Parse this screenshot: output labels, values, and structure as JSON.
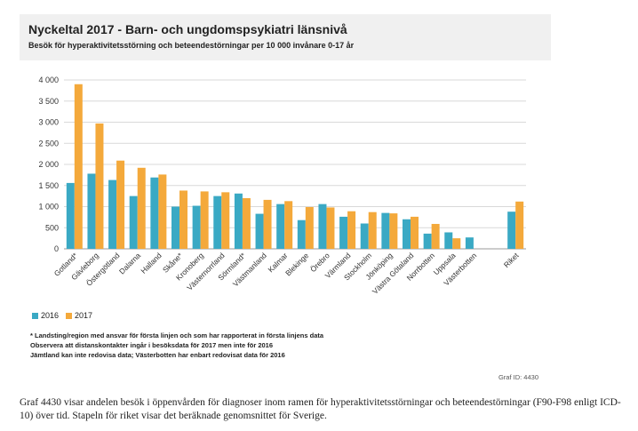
{
  "title": "Nyckeltal 2017 - Barn- och ungdomspsykiatri länsnivå",
  "subtitle": "Besök för hyperaktivitetsstörning och beteendestörningar per 10 000 invånare 0-17 år",
  "legend": [
    {
      "label": "2016",
      "color": "#3aa9c4"
    },
    {
      "label": "2017",
      "color": "#f4a93b"
    }
  ],
  "notes": [
    "* Landsting/region med ansvar för första linjen och som har rapporterat in första linjens data",
    "Observera att distanskontakter ingår i besöksdata för 2017 men inte för 2016",
    "Jämtland kan inte redovisa data; Västerbotten har enbart redovisat data för 2016"
  ],
  "graf_id": "Graf ID: 4430",
  "caption": "Graf 4430 visar andelen besök i öppenvården för diagnoser inom ramen för hyperaktivitetsstörningar och beteendestörningar (F90-F98 enligt ICD-10) över tid. Stapeln för riket visar det beräknade genomsnittet för Sverige.",
  "chart_data": {
    "type": "bar",
    "title": "Nyckeltal 2017 - Barn- och ungdomspsykiatri länsnivå",
    "subtitle": "Besök för hyperaktivitetsstörning och beteendestörningar per 10 000 invånare 0-17 år",
    "ylim": [
      0,
      4000
    ],
    "yticks": [
      "0",
      "500",
      "1 000",
      "1 500",
      "2 000",
      "2 500",
      "3 000",
      "3 500",
      "4 000"
    ],
    "ytick_values": [
      0,
      500,
      1000,
      1500,
      2000,
      2500,
      3000,
      3500,
      4000
    ],
    "grid": true,
    "legend_position": "bottom-left",
    "categories": [
      "Gotland*",
      "Gävleborg",
      "Östergötland",
      "Dalarna",
      "Halland",
      "Skåne*",
      "Kronoberg",
      "Västernorrland",
      "Sörmland*",
      "Västmanland",
      "Kalmar",
      "Blekinge",
      "Örebro",
      "Värmland",
      "Stockholm",
      "Jönköping",
      "Västra Götaland",
      "Norrbotten",
      "Uppsala",
      "Västerbotten",
      "",
      "Riket"
    ],
    "series": [
      {
        "name": "2016",
        "color": "#3aa9c4",
        "values": [
          1560,
          1780,
          1630,
          1250,
          1690,
          1000,
          1020,
          1250,
          1310,
          830,
          1060,
          680,
          1060,
          760,
          600,
          850,
          700,
          360,
          390,
          270,
          null,
          880
        ]
      },
      {
        "name": "2017",
        "color": "#f4a93b",
        "values": [
          3900,
          2970,
          2090,
          1920,
          1760,
          1380,
          1360,
          1340,
          1200,
          1160,
          1130,
          990,
          980,
          890,
          870,
          840,
          760,
          590,
          250,
          null,
          null,
          1120
        ]
      }
    ]
  }
}
